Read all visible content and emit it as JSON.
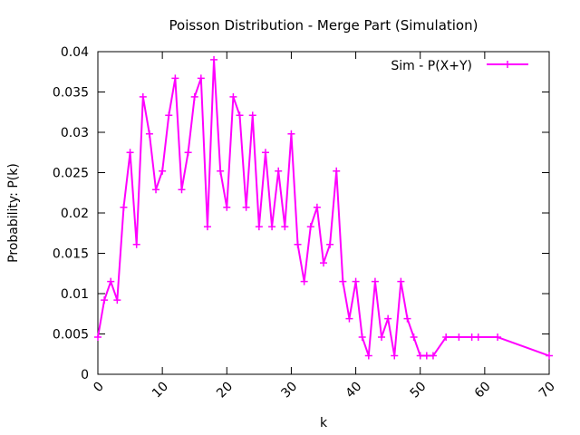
{
  "chart_data": {
    "type": "line",
    "title": "Poisson Distribution - Merge Part (Simulation)",
    "xlabel": "k",
    "ylabel": "Probability: P(k)",
    "xlim": [
      0,
      70
    ],
    "ylim": [
      0,
      0.04
    ],
    "x_ticks": [
      0,
      10,
      20,
      30,
      40,
      50,
      60,
      70
    ],
    "y_ticks": [
      0,
      0.005,
      0.01,
      0.015,
      0.02,
      0.025,
      0.03,
      0.035,
      0.04
    ],
    "x_tick_labels": [
      "0",
      "10",
      "20",
      "30",
      "40",
      "50",
      "60",
      "70"
    ],
    "y_tick_labels": [
      "0",
      "0.005",
      "0.01",
      "0.015",
      "0.02",
      "0.025",
      "0.03",
      "0.035",
      "0.04"
    ],
    "grid": false,
    "legend_position": "top-right",
    "series": [
      {
        "name": "Sim - P(X+Y)",
        "color": "#ff00ff",
        "marker": "plus",
        "x": [
          0,
          1,
          2,
          3,
          4,
          5,
          6,
          7,
          8,
          9,
          10,
          11,
          12,
          13,
          14,
          15,
          16,
          17,
          18,
          19,
          20,
          21,
          22,
          23,
          24,
          25,
          26,
          27,
          28,
          29,
          30,
          31,
          32,
          33,
          34,
          35,
          36,
          37,
          38,
          39,
          40,
          41,
          42,
          43,
          44,
          45,
          46,
          47,
          48,
          49,
          50,
          51,
          52,
          54,
          56,
          58,
          59,
          62,
          70
        ],
        "y": [
          0.0046,
          0.0092,
          0.0115,
          0.0092,
          0.0207,
          0.0275,
          0.0161,
          0.0344,
          0.0298,
          0.0229,
          0.0252,
          0.0321,
          0.0367,
          0.0229,
          0.0275,
          0.0344,
          0.0367,
          0.0183,
          0.039,
          0.0252,
          0.0207,
          0.0344,
          0.0321,
          0.0207,
          0.0321,
          0.0183,
          0.0275,
          0.0183,
          0.0252,
          0.0183,
          0.0298,
          0.0161,
          0.0115,
          0.0183,
          0.0207,
          0.0138,
          0.0161,
          0.0252,
          0.0115,
          0.0069,
          0.0115,
          0.0046,
          0.0023,
          0.0115,
          0.0046,
          0.0069,
          0.0023,
          0.0115,
          0.0069,
          0.0046,
          0.0023,
          0.0023,
          0.0023,
          0.0046,
          0.0046,
          0.0046,
          0.0046,
          0.0046,
          0.0023
        ]
      }
    ]
  }
}
